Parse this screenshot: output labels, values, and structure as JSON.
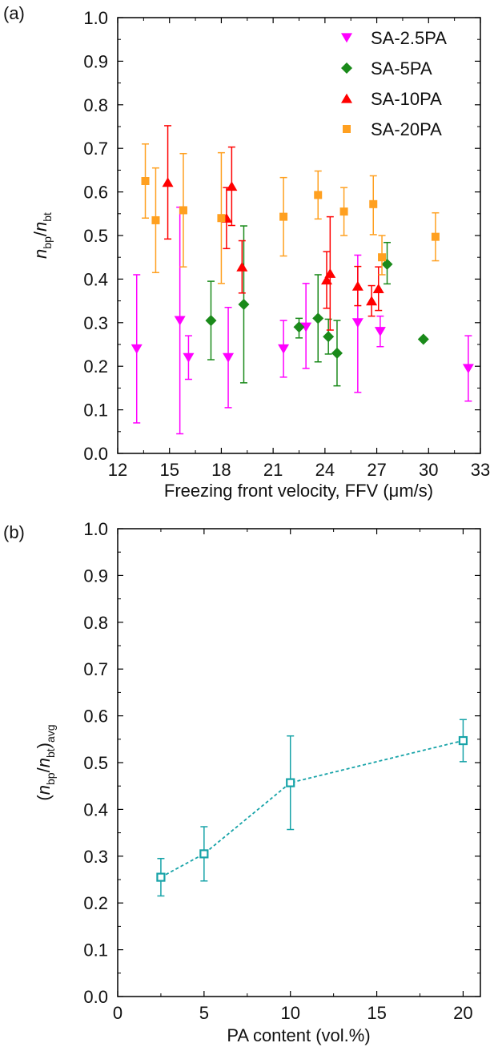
{
  "chart_data": [
    {
      "panel": "(a)",
      "type": "scatter",
      "xlabel": "Freezing front velocity, FFV (μm/s)",
      "ylabel": {
        "n1": "n",
        "sub1": "bp",
        "slash": "/",
        "n2": "n",
        "sub2": "bt"
      },
      "xlim": [
        12,
        33
      ],
      "ylim": [
        0.0,
        1.0
      ],
      "xticks": [
        12,
        15,
        18,
        21,
        24,
        27,
        30,
        33
      ],
      "yticks": [
        0.0,
        0.1,
        0.2,
        0.3,
        0.4,
        0.5,
        0.6,
        0.7,
        0.8,
        0.9,
        1.0
      ],
      "grid": false,
      "legend_position": "top-right",
      "series": [
        {
          "name": "SA-2.5PA",
          "color": "#ff00ff",
          "marker": "triangle-down",
          "x": [
            13.1,
            15.6,
            16.1,
            18.4,
            21.6,
            22.9,
            25.9,
            27.2,
            32.3
          ],
          "y": [
            0.24,
            0.305,
            0.22,
            0.22,
            0.24,
            0.29,
            0.3,
            0.28,
            0.195
          ],
          "err_low": [
            0.17,
            0.26,
            0.05,
            0.115,
            0.065,
            0.095,
            0.16,
            0.035,
            0.075
          ],
          "err_high": [
            0.17,
            0.26,
            0.05,
            0.115,
            0.065,
            0.1,
            0.155,
            0.035,
            0.075
          ]
        },
        {
          "name": "SA-5PA",
          "color": "#1a8a1a",
          "marker": "diamond",
          "x": [
            17.4,
            19.3,
            22.5,
            23.6,
            24.2,
            24.7,
            27.6,
            29.7
          ],
          "y": [
            0.305,
            0.342,
            0.29,
            0.31,
            0.268,
            0.23,
            0.434,
            0.262
          ],
          "err_low": [
            0.09,
            0.18,
            0.025,
            0.1,
            0.04,
            0.075,
            0.045,
            0.0
          ],
          "err_high": [
            0.09,
            0.18,
            0.02,
            0.1,
            0.04,
            0.075,
            0.05,
            0.0
          ]
        },
        {
          "name": "SA-10PA",
          "color": "#ff0000",
          "marker": "triangle-up",
          "x": [
            14.9,
            18.3,
            18.6,
            19.2,
            24.1,
            24.3,
            25.9,
            26.7,
            27.1
          ],
          "y": [
            0.622,
            0.54,
            0.613,
            0.428,
            0.398,
            0.413,
            0.384,
            0.35,
            0.378
          ],
          "err_low": [
            0.13,
            0.07,
            0.09,
            0.06,
            0.065,
            0.13,
            0.045,
            0.035,
            0.05
          ],
          "err_high": [
            0.13,
            0.07,
            0.09,
            0.06,
            0.065,
            0.13,
            0.045,
            0.035,
            0.05
          ]
        },
        {
          "name": "SA-20PA",
          "color": "#ffa020",
          "marker": "square",
          "x": [
            13.6,
            14.2,
            15.8,
            18.0,
            21.6,
            23.6,
            25.1,
            26.8,
            27.3,
            30.4
          ],
          "y": [
            0.625,
            0.535,
            0.558,
            0.54,
            0.543,
            0.593,
            0.555,
            0.572,
            0.45,
            0.497
          ],
          "err_low": [
            0.085,
            0.12,
            0.13,
            0.15,
            0.09,
            0.055,
            0.055,
            0.07,
            0.04,
            0.055
          ],
          "err_high": [
            0.085,
            0.12,
            0.13,
            0.15,
            0.09,
            0.055,
            0.055,
            0.065,
            0.05,
            0.055
          ]
        }
      ]
    },
    {
      "panel": "(b)",
      "type": "line",
      "xlabel": "PA content (vol.%)",
      "ylabel": {
        "open": "(",
        "n1": "n",
        "sub1": "bp",
        "slash": "/",
        "n2": "n",
        "sub2": "bt",
        "close": ")",
        "sub3": "avg"
      },
      "xlim": [
        0,
        21
      ],
      "ylim": [
        0.0,
        1.0
      ],
      "xticks": [
        0,
        5,
        10,
        15,
        20
      ],
      "yticks": [
        0.0,
        0.1,
        0.2,
        0.3,
        0.4,
        0.5,
        0.6,
        0.7,
        0.8,
        0.9,
        1.0
      ],
      "grid": false,
      "series": [
        {
          "color": "#17a3a8",
          "marker": "open-square",
          "line_style": "dashed",
          "x": [
            2.5,
            5,
            10,
            20
          ],
          "y": [
            0.255,
            0.305,
            0.457,
            0.547
          ],
          "err": [
            0.04,
            0.058,
            0.1,
            0.045
          ]
        }
      ]
    }
  ]
}
